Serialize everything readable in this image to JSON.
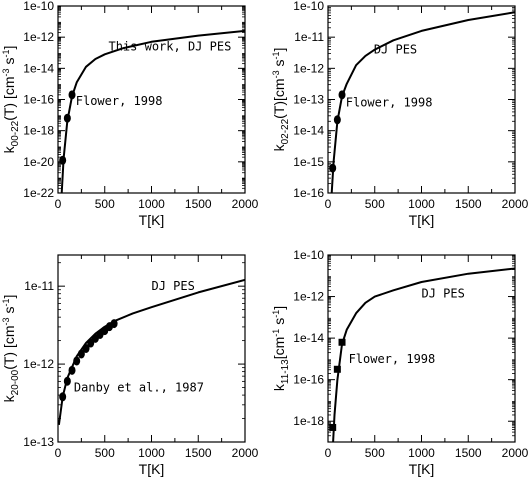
{
  "chart_data": [
    {
      "id": "a",
      "type": "line",
      "scale_y": "log",
      "xlim": [
        0,
        2000
      ],
      "ylim_exp": [
        -22,
        -10
      ],
      "x_ticks": [
        0,
        500,
        1000,
        1500,
        2000
      ],
      "y_ticks": [
        "1e-22",
        "1e-20",
        "1e-18",
        "1e-16",
        "1e-14",
        "1e-12",
        "1e-10"
      ],
      "xlabel": "T[K]",
      "ylabel": {
        "main": "k",
        "sub": "00-22",
        "rest": "(T) [cm",
        "sup1": "-3",
        "mid": " s",
        "sup2": "-1",
        "end": "]"
      },
      "marker": "circle",
      "series": [
        {
          "name": "This work, DJ PES",
          "x": [
            40,
            60,
            100,
            150,
            200,
            300,
            400,
            500,
            700,
            1000,
            1500,
            2000
          ],
          "y_exp": [
            -22.0,
            -19.8,
            -17.4,
            -15.8,
            -14.9,
            -13.9,
            -13.4,
            -13.1,
            -12.7,
            -12.3,
            -11.9,
            -11.6
          ]
        },
        {
          "name": "Flower, 1998",
          "x": [
            50,
            100,
            150
          ],
          "y_exp": [
            -19.9,
            -17.2,
            -15.7
          ]
        }
      ],
      "annotations": [
        {
          "text": "This work, DJ PES",
          "x": 540,
          "y_exp": -12.6
        },
        {
          "text": "Flower, 1998",
          "x": 190,
          "y_exp": -16.1
        }
      ]
    },
    {
      "id": "b",
      "type": "line",
      "scale_y": "log",
      "xlim": [
        0,
        2000
      ],
      "ylim_exp": [
        -16,
        -10
      ],
      "x_ticks": [
        0,
        500,
        1000,
        1500,
        2000
      ],
      "y_ticks": [
        "1e-16",
        "1e-15",
        "1e-14",
        "1e-13",
        "1e-12",
        "1e-11",
        "1e-10"
      ],
      "xlabel": "T[K]",
      "ylabel": {
        "main": "k",
        "sub": "02-22",
        "rest": "(T)[cm",
        "sup1": "-3",
        "mid": " s",
        "sup2": "-1",
        "end": "]"
      },
      "marker": "circle",
      "series": [
        {
          "name": "DJ PES",
          "x": [
            40,
            60,
            100,
            150,
            200,
            300,
            400,
            500,
            700,
            1000,
            1500,
            2000
          ],
          "y_exp": [
            -16.0,
            -15.0,
            -13.7,
            -12.9,
            -12.5,
            -11.9,
            -11.6,
            -11.4,
            -11.1,
            -10.8,
            -10.45,
            -10.2
          ]
        },
        {
          "name": "Flower, 1998",
          "x": [
            50,
            100,
            150
          ],
          "y_exp": [
            -15.2,
            -13.65,
            -12.85
          ]
        }
      ],
      "annotations": [
        {
          "text": "DJ PES",
          "x": 490,
          "y_exp": -11.4
        },
        {
          "text": "Flower, 1998",
          "x": 190,
          "y_exp": -13.1
        }
      ]
    },
    {
      "id": "c",
      "type": "line",
      "scale_y": "log",
      "xlim": [
        0,
        2000
      ],
      "ylim_exp": [
        -13,
        -10.6
      ],
      "x_ticks": [
        0,
        500,
        1000,
        1500,
        2000
      ],
      "y_ticks": [
        "1e-13",
        "1e-12",
        "1e-11"
      ],
      "xlabel": "T[K]",
      "ylabel": {
        "main": "k",
        "sub": "20-00",
        "rest": "(T) [cm",
        "sup1": "-3",
        "mid": " s",
        "sup2": "-1",
        "end": "]"
      },
      "marker": "circle",
      "series": [
        {
          "name": "DJ PES",
          "x": [
            10,
            50,
            100,
            200,
            300,
            400,
            500,
            600,
            800,
            1000,
            1500,
            2000
          ],
          "y_exp": [
            -12.78,
            -12.42,
            -12.18,
            -11.9,
            -11.73,
            -11.61,
            -11.52,
            -11.45,
            -11.35,
            -11.27,
            -11.08,
            -10.92
          ]
        },
        {
          "name": "Danby et al., 1987",
          "x": [
            50,
            100,
            150,
            200,
            250,
            300,
            350,
            400,
            450,
            500,
            550,
            600
          ],
          "y_exp": [
            -12.42,
            -12.22,
            -12.08,
            -11.96,
            -11.87,
            -11.8,
            -11.73,
            -11.67,
            -11.62,
            -11.57,
            -11.52,
            -11.48
          ]
        }
      ],
      "annotations": [
        {
          "text": "DJ PES",
          "x": 1000,
          "y_exp": -11.0
        },
        {
          "text": "Danby et al., 1987",
          "x": 170,
          "y_exp": -12.3
        }
      ]
    },
    {
      "id": "d",
      "type": "line",
      "scale_y": "log",
      "xlim": [
        0,
        2000
      ],
      "ylim_exp": [
        -19,
        -10
      ],
      "x_ticks": [
        0,
        500,
        1000,
        1500,
        2000
      ],
      "y_ticks": [
        "1e-18",
        "1e-16",
        "1e-14",
        "1e-12",
        "1e-10"
      ],
      "xlabel": "T[K]",
      "ylabel": {
        "main": "k",
        "sub": "11-13",
        "rest": "[cm",
        "sup1": "-1",
        "mid": " s",
        "sup2": "-1",
        "end": "]"
      },
      "marker": "square",
      "series": [
        {
          "name": "DJ PES",
          "x": [
            55,
            70,
            100,
            150,
            200,
            300,
            400,
            500,
            700,
            1000,
            1500,
            2000
          ],
          "y_exp": [
            -19.0,
            -17.7,
            -16.0,
            -14.3,
            -13.6,
            -12.8,
            -12.3,
            -12.0,
            -11.7,
            -11.3,
            -10.9,
            -10.65
          ]
        },
        {
          "name": "Flower, 1998",
          "x": [
            50,
            100,
            150
          ],
          "y_exp": [
            -18.3,
            -15.5,
            -14.2
          ]
        }
      ],
      "annotations": [
        {
          "text": "DJ PES",
          "x": 1000,
          "y_exp": -11.85
        },
        {
          "text": "Flower, 1998",
          "x": 220,
          "y_exp": -15.0
        }
      ]
    }
  ]
}
